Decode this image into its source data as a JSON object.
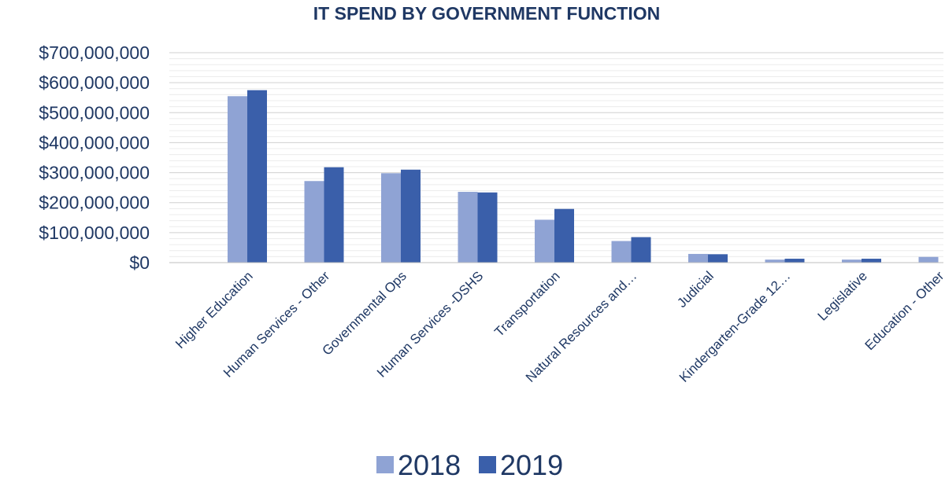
{
  "chart_data": {
    "type": "bar",
    "title": "IT SPEND BY GOVERNMENT FUNCTION",
    "xlabel": "",
    "ylabel": "",
    "ylim": [
      0,
      700000000
    ],
    "yticks": [
      0,
      100000000,
      200000000,
      300000000,
      400000000,
      500000000,
      600000000,
      700000000
    ],
    "ytick_labels": [
      "$0",
      "$100,000,000",
      "$200,000,000",
      "$300,000,000",
      "$400,000,000",
      "$500,000,000",
      "$600,000,000",
      "$700,000,000"
    ],
    "grid": true,
    "legend_position": "bottom",
    "categories": [
      "Higher Education",
      "Human Services - Other",
      "Governmental Ops",
      "Human Services -DSHS",
      "Transportation",
      "Natural Resources and…",
      "Judicial",
      "Kindergarten-Grade 12…",
      "Legislative",
      "Education - Other"
    ],
    "series": [
      {
        "name": "2018",
        "color": "#8fa3d4",
        "values": [
          555000000,
          272000000,
          298000000,
          236000000,
          143000000,
          72000000,
          29000000,
          10000000,
          10000000,
          19000000
        ]
      },
      {
        "name": "2019",
        "color": "#3a5faa",
        "values": [
          575000000,
          318000000,
          310000000,
          234000000,
          179000000,
          85000000,
          28000000,
          13000000,
          13000000,
          0
        ]
      }
    ]
  }
}
